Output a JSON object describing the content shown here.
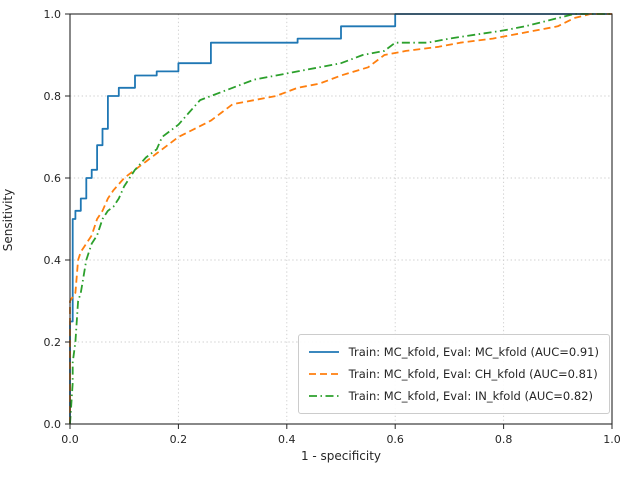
{
  "figure": {
    "background": "#ffffff",
    "xlabel": "1 - specificity",
    "ylabel": "Sensitivity"
  },
  "chart_data": {
    "type": "line",
    "subtype": "roc-curves",
    "title": "",
    "xlabel": "1 - specificity",
    "ylabel": "Sensitivity",
    "xlim": [
      0.0,
      1.0
    ],
    "ylim": [
      0.0,
      1.0
    ],
    "xticks": [
      0.0,
      0.2,
      0.4,
      0.6,
      0.8,
      1.0
    ],
    "yticks": [
      0.0,
      0.2,
      0.4,
      0.6,
      0.8,
      1.0
    ],
    "grid": true,
    "grid_style": "dotted",
    "grid_color": "#cccccc",
    "legend_position": "lower right",
    "series": [
      {
        "name": "Train: MC_kfold, Eval: MC_kfold (AUC=0.91)",
        "auc": 0.91,
        "color": "#1f77b4",
        "line_style": "solid",
        "x": [
          0,
          0,
          0.005,
          0.005,
          0.01,
          0.01,
          0.02,
          0.02,
          0.03,
          0.03,
          0.04,
          0.04,
          0.05,
          0.05,
          0.06,
          0.06,
          0.07,
          0.07,
          0.09,
          0.09,
          0.12,
          0.12,
          0.16,
          0.16,
          0.2,
          0.2,
          0.26,
          0.26,
          0.42,
          0.42,
          0.5,
          0.5,
          0.6,
          0.6,
          1.0
        ],
        "y": [
          0,
          0.25,
          0.25,
          0.5,
          0.5,
          0.52,
          0.52,
          0.55,
          0.55,
          0.6,
          0.6,
          0.62,
          0.62,
          0.68,
          0.68,
          0.72,
          0.72,
          0.8,
          0.8,
          0.82,
          0.82,
          0.85,
          0.85,
          0.86,
          0.86,
          0.88,
          0.88,
          0.93,
          0.93,
          0.94,
          0.94,
          0.97,
          0.97,
          1.0,
          1.0
        ]
      },
      {
        "name": "Train: MC_kfold, Eval: CH_kfold (AUC=0.81)",
        "auc": 0.81,
        "color": "#ff7f0e",
        "line_style": "dashed",
        "x": [
          0,
          0,
          0.01,
          0.015,
          0.02,
          0.03,
          0.04,
          0.05,
          0.06,
          0.07,
          0.08,
          0.1,
          0.12,
          0.14,
          0.16,
          0.18,
          0.2,
          0.23,
          0.26,
          0.28,
          0.3,
          0.34,
          0.38,
          0.42,
          0.46,
          0.5,
          0.55,
          0.58,
          0.62,
          0.68,
          0.72,
          0.78,
          0.82,
          0.86,
          0.9,
          0.93,
          0.96,
          1.0
        ],
        "y": [
          0,
          0.3,
          0.32,
          0.4,
          0.42,
          0.44,
          0.46,
          0.5,
          0.52,
          0.55,
          0.57,
          0.6,
          0.62,
          0.64,
          0.66,
          0.68,
          0.7,
          0.72,
          0.74,
          0.76,
          0.78,
          0.79,
          0.8,
          0.82,
          0.83,
          0.85,
          0.87,
          0.9,
          0.91,
          0.92,
          0.93,
          0.94,
          0.95,
          0.96,
          0.97,
          0.99,
          1.0,
          1.0
        ]
      },
      {
        "name": "Train: MC_kfold, Eval: IN_kfold (AUC=0.82)",
        "auc": 0.82,
        "color": "#2ca02c",
        "line_style": "dashdot",
        "x": [
          0,
          0.005,
          0.005,
          0.01,
          0.015,
          0.02,
          0.03,
          0.035,
          0.04,
          0.05,
          0.06,
          0.07,
          0.08,
          0.09,
          0.1,
          0.11,
          0.12,
          0.14,
          0.16,
          0.17,
          0.19,
          0.2,
          0.22,
          0.24,
          0.26,
          0.3,
          0.34,
          0.38,
          0.42,
          0.46,
          0.5,
          0.54,
          0.58,
          0.6,
          0.66,
          0.7,
          0.75,
          0.8,
          0.84,
          0.87,
          0.9,
          0.93,
          1.0
        ],
        "y": [
          0,
          0.1,
          0.15,
          0.2,
          0.3,
          0.32,
          0.4,
          0.42,
          0.44,
          0.46,
          0.5,
          0.52,
          0.53,
          0.55,
          0.58,
          0.6,
          0.62,
          0.65,
          0.67,
          0.7,
          0.72,
          0.73,
          0.76,
          0.79,
          0.8,
          0.82,
          0.84,
          0.85,
          0.86,
          0.87,
          0.88,
          0.9,
          0.91,
          0.93,
          0.93,
          0.94,
          0.95,
          0.96,
          0.97,
          0.98,
          0.99,
          1.0,
          1.0
        ]
      }
    ]
  }
}
